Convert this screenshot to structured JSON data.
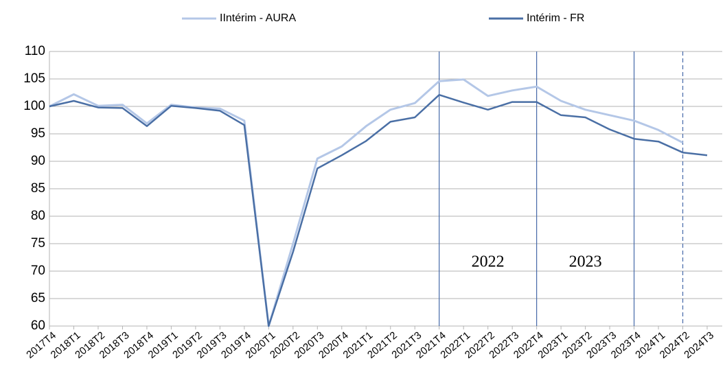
{
  "chart_data": {
    "type": "line",
    "categories": [
      "2017T4",
      "2018T1",
      "2018T2",
      "2018T3",
      "2018T4",
      "2019T1",
      "2019T2",
      "2019T3",
      "2019T4",
      "2020T1",
      "2020T2",
      "2020T3",
      "2020T4",
      "2021T1",
      "2021T2",
      "2021T3",
      "2021T4",
      "2022T1",
      "2022T2",
      "2022T3",
      "2022T4",
      "2023T1",
      "2023T2",
      "2023T3",
      "2023T4",
      "2024T1",
      "2024T2",
      "2024T3"
    ],
    "series": [
      {
        "name": "IIntérim - AURA",
        "color": "#b4c7e7",
        "values": [
          100,
          102.2,
          100.1,
          100.3,
          96.9,
          100.3,
          99.8,
          99.6,
          97.4,
          60,
          75,
          90.5,
          92.7,
          96.4,
          99.4,
          100.6,
          104.6,
          104.9,
          101.9,
          102.9,
          103.6,
          101,
          99.4,
          98.4,
          97.4,
          95.7,
          93.4,
          null
        ]
      },
      {
        "name": "Intérim - FR",
        "color": "#4a6fa5",
        "values": [
          100,
          101,
          99.8,
          99.7,
          96.4,
          100.1,
          99.7,
          99.2,
          96.6,
          60,
          73.5,
          88.7,
          91.1,
          93.7,
          97.2,
          98,
          102.1,
          100.7,
          99.4,
          100.8,
          100.8,
          98.4,
          98,
          95.8,
          94.1,
          93.6,
          91.6,
          91.1
        ]
      }
    ],
    "ylim": [
      60,
      110
    ],
    "yticks": [
      60,
      65,
      70,
      75,
      80,
      85,
      90,
      95,
      100,
      105,
      110
    ],
    "grid": true,
    "vlines": [
      {
        "category": "2021T4",
        "dashed": false
      },
      {
        "category": "2022T4",
        "dashed": false
      },
      {
        "category": "2023T4",
        "dashed": false
      },
      {
        "category": "2024T2",
        "dashed": true
      }
    ],
    "annotations": [
      {
        "text": "2022"
      },
      {
        "text": "2023"
      }
    ],
    "legend": "top"
  }
}
